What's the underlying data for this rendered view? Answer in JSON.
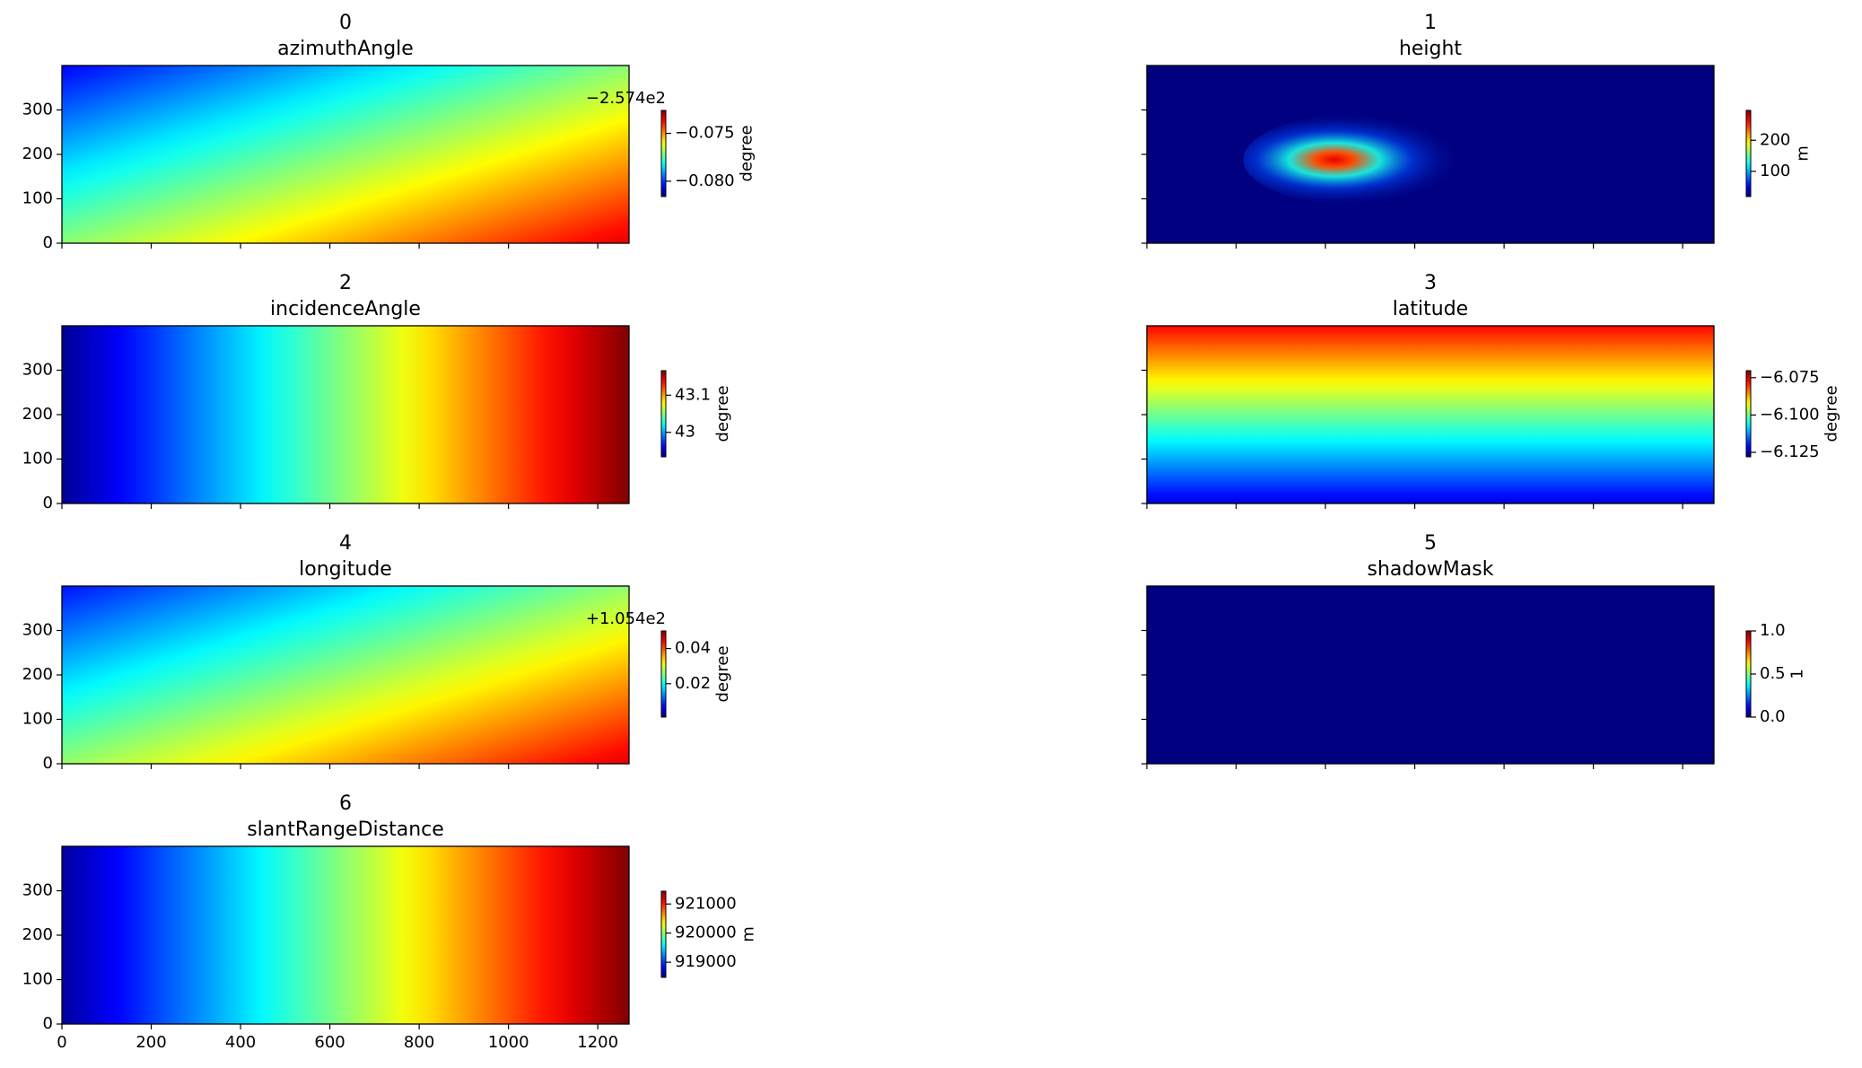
{
  "chart_data": [
    {
      "type": "heatmap",
      "title": "0",
      "subtitle": "azimuthAngle",
      "xlim": [
        0,
        1270
      ],
      "ylim": [
        0,
        400
      ],
      "xticks": [
        0,
        200,
        400,
        600,
        800,
        1000,
        1200
      ],
      "yticks": [
        0,
        100,
        200,
        300
      ],
      "show_xticklabels": false,
      "show_yticklabels": true,
      "colormap": "jet",
      "colorbar": {
        "label": "degree",
        "clim": [
          -0.0816,
          -0.0726
        ],
        "ticks": [
          {
            "value": -0.08,
            "label": "−0.080"
          },
          {
            "value": -0.075,
            "label": "−0.075"
          }
        ],
        "offset": "−2.574e2"
      }
    },
    {
      "type": "heatmap",
      "title": "1",
      "subtitle": "height",
      "xlim": [
        0,
        1270
      ],
      "ylim": [
        0,
        400
      ],
      "xticks": [
        0,
        200,
        400,
        600,
        800,
        1000,
        1200
      ],
      "yticks": [
        0,
        100,
        200,
        300
      ],
      "show_xticklabels": false,
      "show_yticklabels": false,
      "colormap": "jet",
      "colorbar": {
        "label": "m",
        "clim": [
          19,
          296
        ],
        "ticks": [
          100,
          200
        ]
      }
    },
    {
      "type": "heatmap",
      "title": "2",
      "subtitle": "incidenceAngle",
      "xlim": [
        0,
        1270
      ],
      "ylim": [
        0,
        400
      ],
      "xticks": [
        0,
        200,
        400,
        600,
        800,
        1000,
        1200
      ],
      "yticks": [
        0,
        100,
        200,
        300
      ],
      "show_xticklabels": false,
      "show_yticklabels": true,
      "colormap": "jet",
      "colorbar": {
        "label": "degree",
        "clim": [
          42.934,
          43.166
        ],
        "ticks": [
          43.0,
          43.1
        ]
      }
    },
    {
      "type": "heatmap",
      "title": "3",
      "subtitle": "latitude",
      "xlim": [
        0,
        1270
      ],
      "ylim": [
        0,
        400
      ],
      "xticks": [
        0,
        200,
        400,
        600,
        800,
        1000,
        1200
      ],
      "yticks": [
        0,
        100,
        200,
        300
      ],
      "show_xticklabels": false,
      "show_yticklabels": false,
      "colormap": "jet",
      "colorbar": {
        "label": "degree",
        "clim": [
          -6.128,
          -6.0703
        ],
        "ticks": [
          {
            "value": -6.125,
            "label": "−6.125"
          },
          {
            "value": -6.1,
            "label": "−6.100"
          },
          {
            "value": -6.075,
            "label": "−6.075"
          }
        ]
      }
    },
    {
      "type": "heatmap",
      "title": "4",
      "subtitle": "longitude",
      "xlim": [
        0,
        1270
      ],
      "ylim": [
        0,
        400
      ],
      "xticks": [
        0,
        200,
        400,
        600,
        800,
        1000,
        1200
      ],
      "yticks": [
        0,
        100,
        200,
        300
      ],
      "show_xticklabels": false,
      "show_yticklabels": true,
      "colormap": "jet",
      "colorbar": {
        "label": "degree",
        "clim": [
          0.001,
          0.05
        ],
        "ticks": [
          0.02,
          0.04
        ],
        "offset": "+1.054e2"
      }
    },
    {
      "type": "heatmap",
      "title": "5",
      "subtitle": "shadowMask",
      "xlim": [
        0,
        1270
      ],
      "ylim": [
        0,
        400
      ],
      "xticks": [
        0,
        200,
        400,
        600,
        800,
        1000,
        1200
      ],
      "yticks": [
        0,
        100,
        200,
        300
      ],
      "show_xticklabels": false,
      "show_yticklabels": false,
      "colormap": "jet",
      "colorbar": {
        "label": "1",
        "clim": [
          0,
          1
        ],
        "ticks": [
          {
            "value": 0,
            "label": "0.0"
          },
          0.5,
          {
            "value": 1,
            "label": "1.0"
          }
        ]
      }
    },
    {
      "type": "heatmap",
      "title": "6",
      "subtitle": "slantRangeDistance",
      "xlim": [
        0,
        1270
      ],
      "ylim": [
        0,
        400
      ],
      "xticks": [
        0,
        200,
        400,
        600,
        800,
        1000,
        1200
      ],
      "yticks": [
        0,
        100,
        200,
        300
      ],
      "show_xticklabels": true,
      "show_yticklabels": true,
      "colormap": "jet",
      "colorbar": {
        "label": "m",
        "clim": [
          918480,
          921440
        ],
        "ticks": [
          919000,
          920000,
          921000
        ]
      }
    }
  ]
}
